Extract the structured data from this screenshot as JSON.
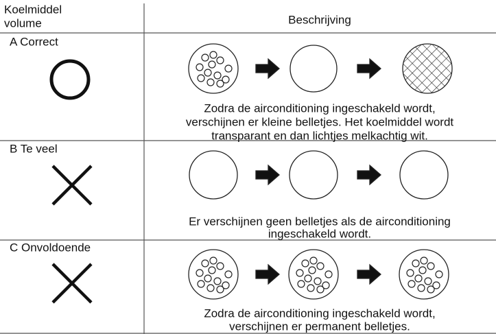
{
  "table": {
    "header": {
      "volume": [
        "Koelmiddel",
        "volume"
      ],
      "description": "Beschrijving"
    },
    "rows": [
      {
        "label": "A Correct",
        "description": [
          "Zodra de airconditioning ingeschakeld wordt,",
          "verschijnen er kleine belletjes. Het koelmiddel wordt",
          "transparant en dan lichtjes melkachtig wit."
        ]
      },
      {
        "label": "B Te veel",
        "description": [
          "Er verschijnen geen belletjes als de airconditioning",
          "ingeschakeld wordt."
        ]
      },
      {
        "label": "C Onvoldoende",
        "description": [
          "Zodra de airconditioning ingeschakeld wordt,",
          "verschijnen er permanent belletjes."
        ]
      }
    ]
  }
}
